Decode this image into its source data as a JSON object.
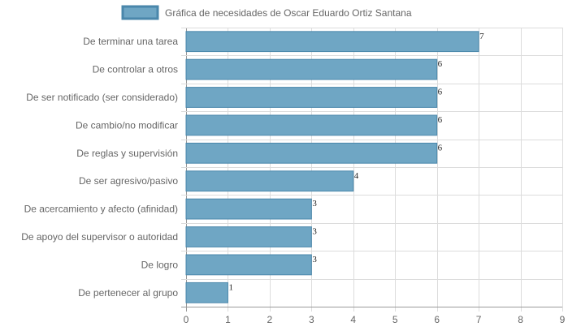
{
  "chart_data": {
    "type": "bar",
    "orientation": "horizontal",
    "categories": [
      "De terminar una tarea",
      "De controlar a otros",
      "De ser notificado (ser considerado)",
      "De cambio/no modificar",
      "De reglas y supervisión",
      "De ser agresivo/pasivo",
      "De acercamiento y afecto (afinidad)",
      "De apoyo del supervisor o autoridad",
      "De logro",
      "De pertenecer al grupo"
    ],
    "series": [
      {
        "name": "Gráfica de necesidades de Oscar Eduardo Ortiz Santana",
        "values": [
          7,
          6,
          6,
          6,
          6,
          4,
          3,
          3,
          3,
          1
        ],
        "color": "#6fa6c4",
        "border_color": "#4a87ab"
      }
    ],
    "xlim": [
      0,
      9
    ],
    "x_ticks": [
      0,
      1,
      2,
      3,
      4,
      5,
      6,
      7,
      8,
      9
    ],
    "grid": true,
    "grid_color": "#dcdcdc",
    "legend_position": "top",
    "data_labels": true
  }
}
